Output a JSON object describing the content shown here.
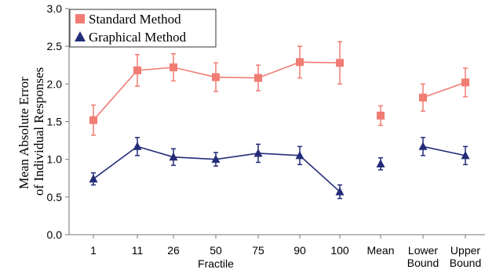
{
  "chart_data": {
    "type": "line",
    "title": "",
    "xlabel": "Fractile",
    "ylabel": [
      "Mean Absolute Error",
      "of Individual Responses"
    ],
    "ylim": [
      0.0,
      3.0
    ],
    "yticks": [
      "0.0",
      "0.5",
      "1.0",
      "1.5",
      "2.0",
      "2.5",
      "3.0"
    ],
    "categories": [
      "1",
      "11",
      "26",
      "50",
      "75",
      "90",
      "100",
      "Mean",
      "Lower Bound",
      "Upper Bound"
    ],
    "category_groups": [
      [
        0,
        1,
        2,
        3,
        4,
        5,
        6
      ],
      [
        7
      ],
      [
        8,
        9
      ]
    ],
    "grid": false,
    "legend_position": "top-left",
    "series": [
      {
        "name": "Standard Method",
        "color": "#f07c73",
        "marker": "square",
        "values": [
          1.52,
          2.18,
          2.22,
          2.09,
          2.08,
          2.29,
          2.28,
          1.58,
          1.82,
          2.02
        ],
        "error": [
          0.2,
          0.21,
          0.18,
          0.19,
          0.17,
          0.21,
          0.28,
          0.13,
          0.18,
          0.19
        ]
      },
      {
        "name": "Graphical Method",
        "color": "#232c78",
        "marker": "triangle",
        "values": [
          0.74,
          1.17,
          1.03,
          1.0,
          1.08,
          1.05,
          0.57,
          0.94,
          1.17,
          1.05
        ],
        "error": [
          0.08,
          0.12,
          0.11,
          0.09,
          0.12,
          0.12,
          0.09,
          0.08,
          0.12,
          0.12
        ]
      }
    ]
  }
}
